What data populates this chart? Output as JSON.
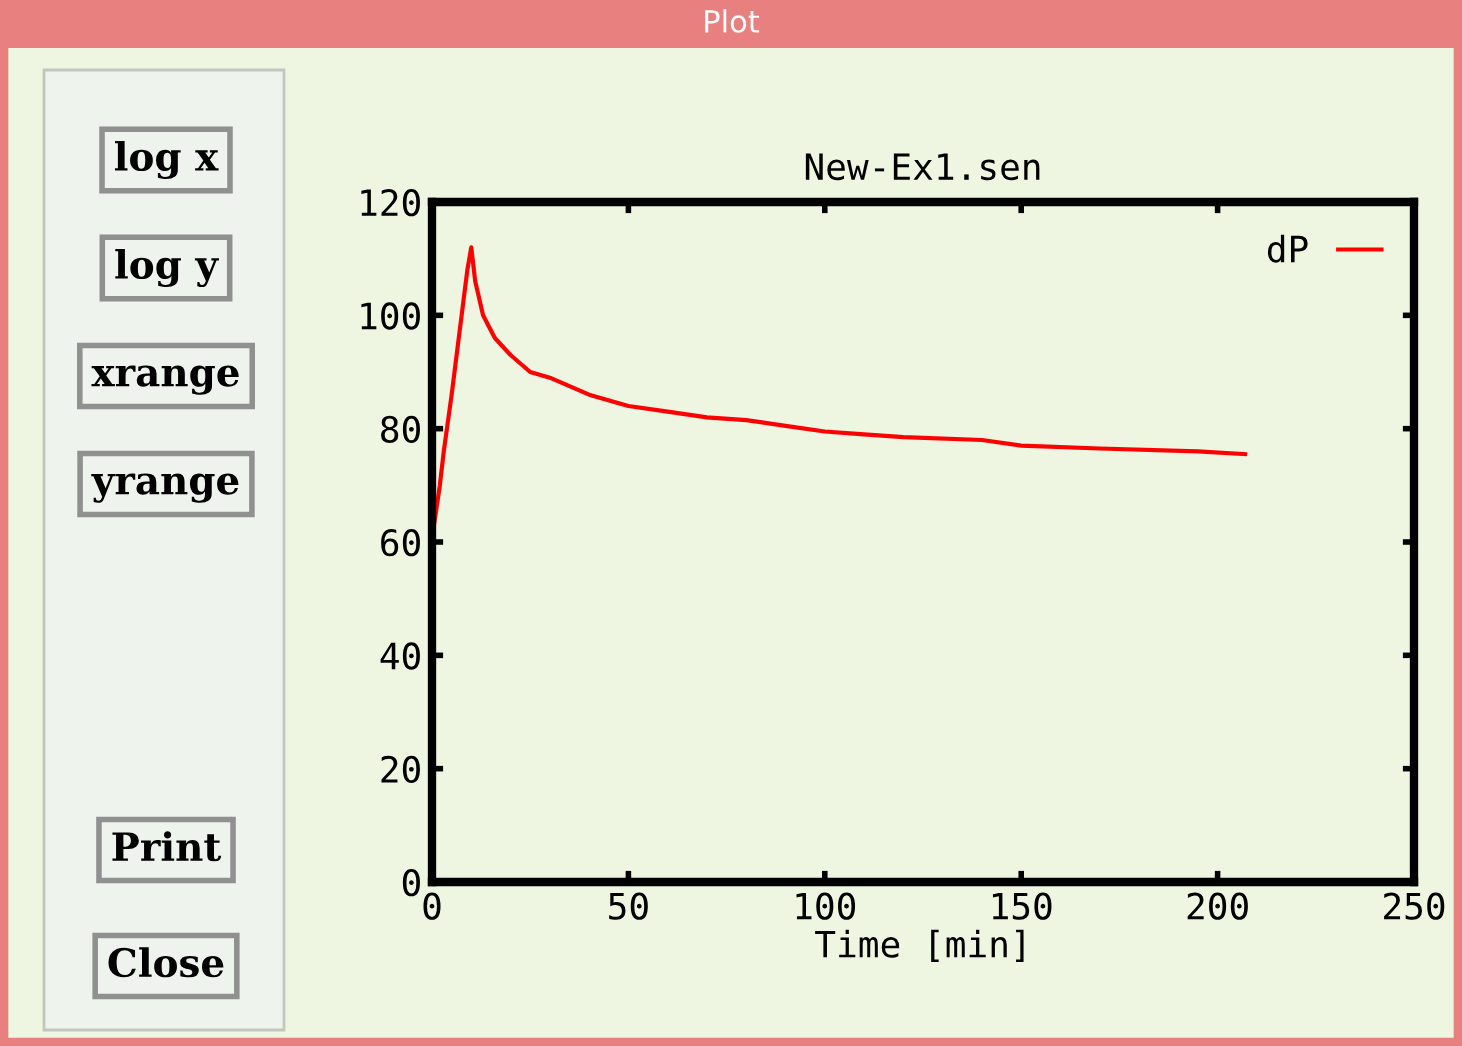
{
  "chart_data": {
    "type": "line",
    "title": "New-Ex1.sen",
    "xlabel": "Time [min]",
    "x": [
      0,
      0.3,
      2,
      3,
      5,
      7,
      9,
      10,
      11,
      13,
      16,
      20,
      25,
      30,
      40,
      50,
      60,
      70,
      80,
      90,
      100,
      110,
      120,
      140,
      150,
      170,
      195,
      207
    ],
    "series": [
      {
        "name": "dP",
        "color": "#ff0000",
        "values": [
          0,
          62,
          70,
          76,
          86,
          97,
          108,
          112,
          106,
          100,
          96,
          93,
          90,
          89,
          86,
          84,
          83,
          82,
          81.5,
          80.5,
          79.5,
          79,
          78.5,
          78,
          77,
          76.5,
          76,
          75.5
        ]
      }
    ],
    "xlim": [
      0,
      250
    ],
    "xticks": [
      0,
      50,
      100,
      150,
      200,
      250
    ],
    "ylim": [
      0,
      120
    ],
    "yticks": [
      0,
      20,
      40,
      60,
      80,
      100,
      120
    ],
    "grid": false,
    "legend": "top right",
    "marker": "none",
    "line_style": "solid",
    "annotations": [
      "Plot",
      "log x",
      "log y",
      "xrange",
      "yrange",
      "Print",
      "Close"
    ]
  }
}
